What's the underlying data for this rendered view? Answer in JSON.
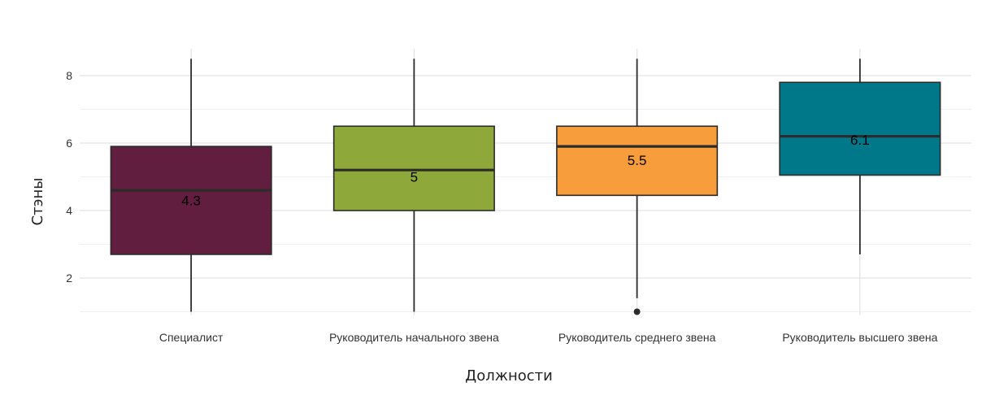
{
  "chart_data": {
    "type": "box",
    "xlabel": "Должности",
    "ylabel": "Стэны",
    "ylim": [
      0.9,
      8.8
    ],
    "yticks": [
      2,
      4,
      6,
      8
    ],
    "grid": true,
    "categories": [
      "Специалист",
      "Руководитель начального звена",
      "Руководитель среднего звена",
      "Руководитель высшего звена"
    ],
    "boxes": [
      {
        "category": "Специалист",
        "whisker_low": 1,
        "q1": 2.7,
        "median": 4.6,
        "q3": 5.9,
        "whisker_high": 8.5,
        "outliers": [],
        "label": "4.3",
        "label_value": 4.3,
        "color": "#621E3F"
      },
      {
        "category": "Руководитель начального звена",
        "whisker_low": 1,
        "q1": 4,
        "median": 5.2,
        "q3": 6.5,
        "whisker_high": 8.5,
        "outliers": [],
        "label": "5",
        "label_value": 5.0,
        "color": "#8EA83A"
      },
      {
        "category": "Руководитель среднего звена",
        "whisker_low": 1.4,
        "q1": 4.45,
        "median": 5.9,
        "q3": 6.5,
        "whisker_high": 8.5,
        "outliers": [
          1
        ],
        "label": "5.5",
        "label_value": 5.5,
        "color": "#F79D3B"
      },
      {
        "category": "Руководитель высшего звена",
        "whisker_low": 2.7,
        "q1": 5.05,
        "median": 6.2,
        "q3": 7.8,
        "whisker_high": 8.5,
        "outliers": [],
        "label": "6.1",
        "label_value": 6.1,
        "color": "#00788A"
      }
    ]
  }
}
